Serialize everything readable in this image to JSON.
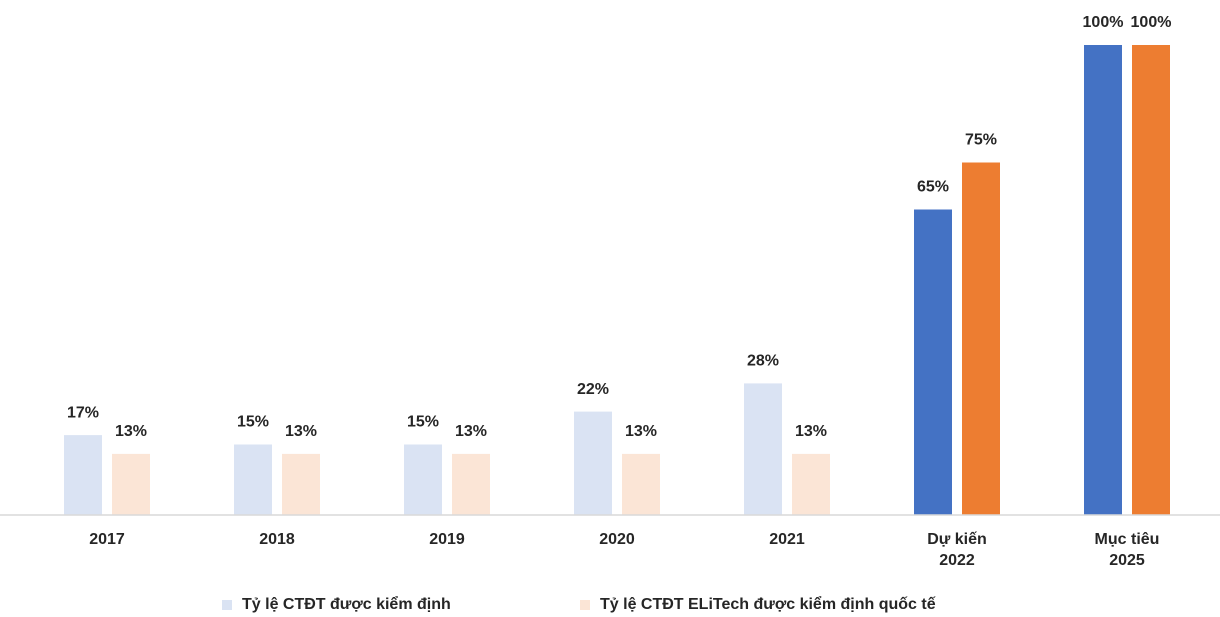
{
  "chart_data": {
    "type": "bar",
    "categories": [
      "2017",
      "2018",
      "2019",
      "2020",
      "2021",
      "Dự kiến\n2022",
      "Mục tiêu\n2025"
    ],
    "series": [
      {
        "name": "Tỷ lệ CTĐT được kiểm định",
        "color": "#dae3f3",
        "colors": [
          "#dae3f3",
          "#dae3f3",
          "#dae3f3",
          "#dae3f3",
          "#dae3f3",
          "#4472c4",
          "#4472c4"
        ],
        "values": [
          17,
          15,
          15,
          22,
          28,
          65,
          100
        ],
        "value_labels": [
          "17%",
          "15%",
          "15%",
          "22%",
          "28%",
          "65%",
          "100%"
        ]
      },
      {
        "name": "Tỷ lệ CTĐT ELiTech được kiểm định quốc tế",
        "color": "#fbe5d6",
        "colors": [
          "#fbe5d6",
          "#fbe5d6",
          "#fbe5d6",
          "#fbe5d6",
          "#fbe5d6",
          "#ed7d31",
          "#ed7d31"
        ],
        "values": [
          13,
          13,
          13,
          13,
          13,
          75,
          100
        ],
        "value_labels": [
          "13%",
          "13%",
          "13%",
          "13%",
          "13%",
          "75%",
          "100%"
        ]
      }
    ],
    "ylim": [
      0,
      100
    ],
    "legend": "bottom"
  }
}
